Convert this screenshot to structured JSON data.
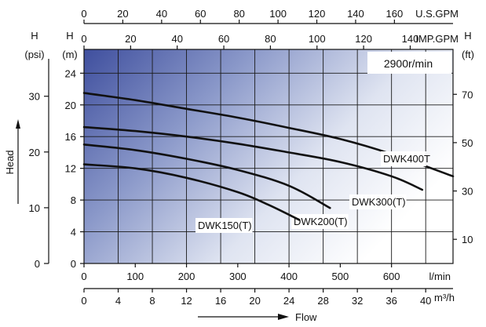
{
  "chart_data": {
    "type": "line",
    "annotation": "2900r/min",
    "x_axes": {
      "l_min": {
        "unit": "l/min",
        "ticks": [
          0,
          100,
          200,
          300,
          400,
          500,
          600
        ],
        "range": [
          0,
          720
        ]
      },
      "m3_h": {
        "unit": "m³/h",
        "ticks": [
          0,
          4,
          8,
          12,
          16,
          20,
          24,
          28,
          32,
          36,
          40
        ],
        "range": [
          0,
          43.2
        ]
      },
      "us_gpm": {
        "unit": "U.S.GPM",
        "ticks": [
          0,
          20,
          40,
          60,
          80,
          100,
          120,
          140,
          160
        ]
      },
      "imp_gpm": {
        "unit": "IMP.GPM",
        "ticks": [
          0,
          20,
          40,
          60,
          80,
          100,
          120,
          140
        ]
      }
    },
    "y_axes": {
      "m": {
        "label": "H",
        "unit": "(m)",
        "ticks": [
          0,
          4,
          8,
          12,
          16,
          20,
          24
        ],
        "range": [
          0,
          27
        ]
      },
      "psi": {
        "label": "H",
        "unit": "(psi)",
        "ticks": [
          0,
          10,
          20,
          30
        ]
      },
      "ft": {
        "label": "H",
        "unit": "(ft)",
        "ticks": [
          10,
          30,
          50,
          70
        ]
      }
    },
    "xlabel": "Flow",
    "ylabel": "Head",
    "grid": true,
    "series": [
      {
        "name": "DWK400T",
        "x": [
          0,
          100,
          200,
          300,
          400,
          500,
          600,
          720
        ],
        "y": [
          21.5,
          20.6,
          19.5,
          18.4,
          17.1,
          15.7,
          13.8,
          11.0
        ]
      },
      {
        "name": "DWK300(T)",
        "x": [
          0,
          100,
          200,
          300,
          400,
          500,
          600,
          660
        ],
        "y": [
          17.2,
          16.7,
          16.0,
          15.1,
          14.0,
          12.8,
          11.0,
          9.3
        ]
      },
      {
        "name": "DWK200(T)",
        "x": [
          0,
          100,
          200,
          300,
          400,
          480
        ],
        "y": [
          15.0,
          14.3,
          13.2,
          11.8,
          9.8,
          7.0
        ]
      },
      {
        "name": "DWK150(T)",
        "x": [
          0,
          100,
          200,
          300,
          360,
          420
        ],
        "y": [
          12.5,
          12.0,
          10.8,
          9.0,
          7.4,
          5.5
        ]
      }
    ]
  }
}
